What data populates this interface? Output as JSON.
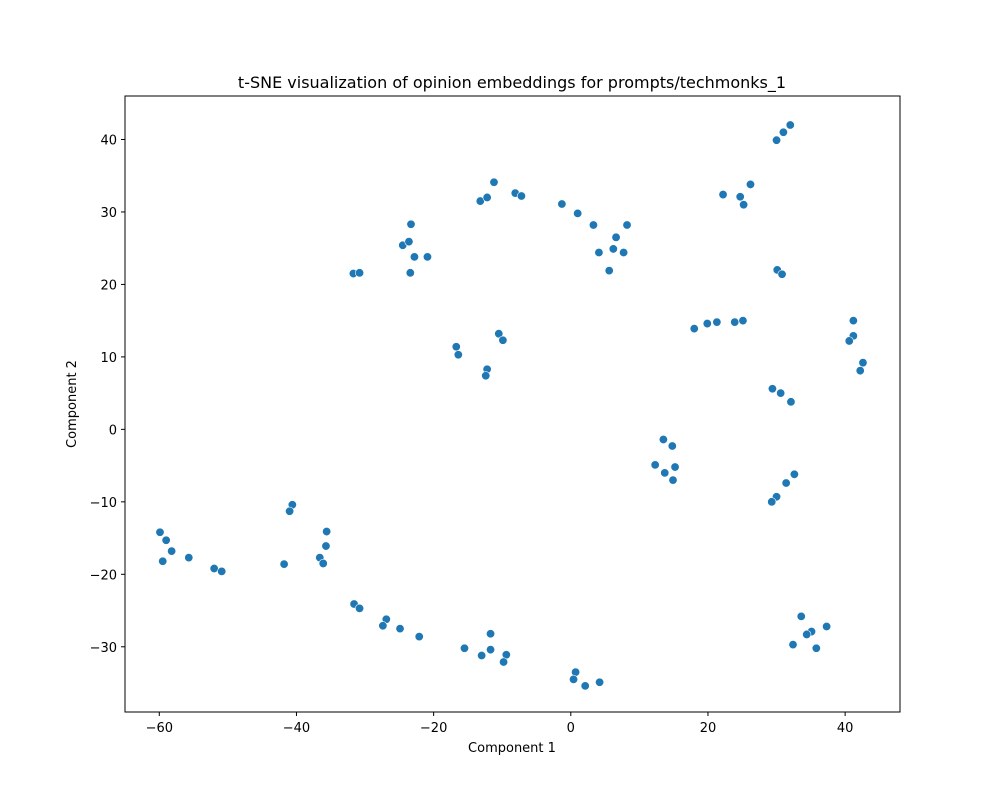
{
  "chart_data": {
    "type": "scatter",
    "title": "t-SNE visualization of opinion embeddings for prompts/techmonks_1",
    "xlabel": "Component 1",
    "ylabel": "Component 2",
    "xlim": [
      -65,
      48
    ],
    "ylim": [
      -39,
      46
    ],
    "xticks": [
      -60,
      -40,
      -20,
      0,
      20,
      40
    ],
    "yticks": [
      -30,
      -20,
      -10,
      0,
      10,
      20,
      30,
      40
    ],
    "grid": false,
    "point_color": "#1f77b4",
    "points": [
      [
        -59.9,
        -14.2
      ],
      [
        -59.0,
        -15.3
      ],
      [
        -58.2,
        -16.8
      ],
      [
        -59.5,
        -18.2
      ],
      [
        -55.7,
        -17.7
      ],
      [
        -52.0,
        -19.2
      ],
      [
        -50.9,
        -19.6
      ],
      [
        -40.6,
        -10.4
      ],
      [
        -41.0,
        -11.3
      ],
      [
        -41.8,
        -18.6
      ],
      [
        -35.6,
        -14.1
      ],
      [
        -35.7,
        -16.1
      ],
      [
        -36.6,
        -17.7
      ],
      [
        -36.1,
        -18.5
      ],
      [
        -31.6,
        -24.1
      ],
      [
        -30.8,
        -24.7
      ],
      [
        -26.9,
        -26.2
      ],
      [
        -27.4,
        -27.1
      ],
      [
        -24.9,
        -27.5
      ],
      [
        -22.1,
        -28.6
      ],
      [
        -15.5,
        -30.2
      ],
      [
        -13.0,
        -31.2
      ],
      [
        -11.7,
        -28.2
      ],
      [
        -11.7,
        -30.4
      ],
      [
        -9.4,
        -31.1
      ],
      [
        -9.8,
        -32.1
      ],
      [
        0.7,
        -33.5
      ],
      [
        0.4,
        -34.5
      ],
      [
        2.1,
        -35.4
      ],
      [
        4.2,
        -34.9
      ],
      [
        -31.7,
        21.5
      ],
      [
        -30.8,
        21.6
      ],
      [
        -24.5,
        25.4
      ],
      [
        -23.6,
        25.9
      ],
      [
        -23.3,
        28.3
      ],
      [
        -22.8,
        23.8
      ],
      [
        -23.4,
        21.6
      ],
      [
        -20.9,
        23.8
      ],
      [
        -13.2,
        31.5
      ],
      [
        -12.2,
        32.0
      ],
      [
        -11.2,
        34.1
      ],
      [
        -8.1,
        32.6
      ],
      [
        -7.2,
        32.2
      ],
      [
        -1.3,
        31.1
      ],
      [
        1.0,
        29.8
      ],
      [
        3.3,
        28.2
      ],
      [
        4.1,
        24.4
      ],
      [
        6.2,
        24.9
      ],
      [
        6.6,
        26.5
      ],
      [
        5.6,
        21.9
      ],
      [
        7.7,
        24.4
      ],
      [
        8.2,
        28.2
      ],
      [
        -16.7,
        11.4
      ],
      [
        -16.4,
        10.3
      ],
      [
        -10.5,
        13.2
      ],
      [
        -9.9,
        12.3
      ],
      [
        -12.2,
        8.3
      ],
      [
        -12.4,
        7.4
      ],
      [
        22.2,
        32.4
      ],
      [
        24.7,
        32.1
      ],
      [
        25.2,
        31.0
      ],
      [
        26.2,
        33.8
      ],
      [
        30.0,
        39.9
      ],
      [
        31.0,
        41.0
      ],
      [
        32.0,
        42.0
      ],
      [
        30.1,
        22.0
      ],
      [
        30.8,
        21.4
      ],
      [
        18.0,
        13.9
      ],
      [
        19.9,
        14.6
      ],
      [
        21.3,
        14.8
      ],
      [
        23.9,
        14.8
      ],
      [
        25.1,
        15.0
      ],
      [
        41.2,
        15.0
      ],
      [
        41.2,
        12.9
      ],
      [
        40.6,
        12.2
      ],
      [
        42.6,
        9.2
      ],
      [
        42.2,
        8.1
      ],
      [
        29.4,
        5.6
      ],
      [
        30.6,
        5.0
      ],
      [
        32.1,
        3.8
      ],
      [
        13.5,
        -1.4
      ],
      [
        14.8,
        -2.3
      ],
      [
        12.3,
        -4.9
      ],
      [
        15.2,
        -5.2
      ],
      [
        13.7,
        -6.0
      ],
      [
        14.9,
        -7.0
      ],
      [
        32.6,
        -6.2
      ],
      [
        31.4,
        -7.4
      ],
      [
        30.0,
        -9.3
      ],
      [
        29.3,
        -10.0
      ],
      [
        33.6,
        -25.8
      ],
      [
        37.3,
        -27.2
      ],
      [
        35.1,
        -27.9
      ],
      [
        34.4,
        -28.3
      ],
      [
        32.4,
        -29.7
      ],
      [
        35.8,
        -30.2
      ]
    ]
  }
}
